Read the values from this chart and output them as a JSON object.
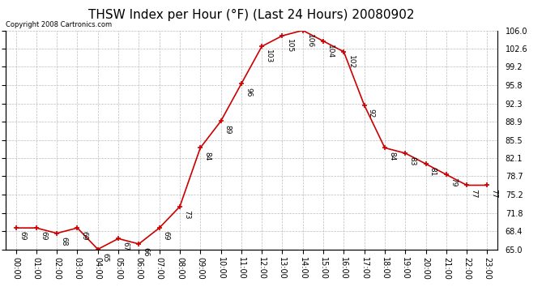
{
  "title": "THSW Index per Hour (°F) (Last 24 Hours) 20080902",
  "copyright": "Copyright 2008 Cartronics.com",
  "hours": [
    0,
    1,
    2,
    3,
    4,
    5,
    6,
    7,
    8,
    9,
    10,
    11,
    12,
    13,
    14,
    15,
    16,
    17,
    18,
    19,
    20,
    21,
    22,
    23
  ],
  "values": [
    69,
    69,
    68,
    69,
    65,
    67,
    66,
    69,
    73,
    84,
    89,
    96,
    103,
    105,
    106,
    104,
    102,
    92,
    84,
    83,
    81,
    79,
    77,
    77
  ],
  "xlabels": [
    "00:00",
    "01:00",
    "02:00",
    "03:00",
    "04:00",
    "05:00",
    "06:00",
    "07:00",
    "08:00",
    "09:00",
    "10:00",
    "11:00",
    "12:00",
    "13:00",
    "14:00",
    "15:00",
    "16:00",
    "17:00",
    "18:00",
    "19:00",
    "20:00",
    "21:00",
    "22:00",
    "23:00"
  ],
  "yticks": [
    65.0,
    68.4,
    71.8,
    75.2,
    78.7,
    82.1,
    85.5,
    88.9,
    92.3,
    95.8,
    99.2,
    102.6,
    106.0
  ],
  "ylim": [
    65.0,
    106.0
  ],
  "line_color": "#cc0000",
  "marker_color": "#cc0000",
  "background_color": "#ffffff",
  "grid_color": "#bbbbbb",
  "title_fontsize": 11,
  "tick_fontsize": 7,
  "annotation_fontsize": 6.5
}
